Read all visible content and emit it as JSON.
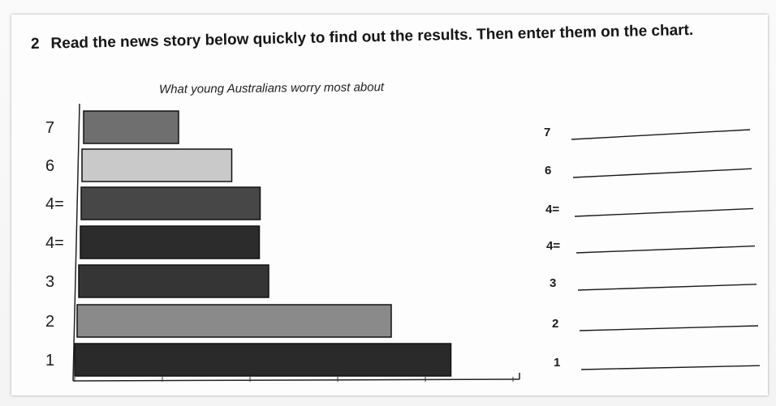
{
  "instruction": {
    "number": "2",
    "text": "Read the news story below quickly to find out the results. Then enter them on the chart."
  },
  "chart_data": {
    "type": "bar",
    "orientation": "horizontal",
    "title": "What young Australians worry most about",
    "categories": [
      "7",
      "6",
      "4=",
      "4=",
      "3",
      "2",
      "1"
    ],
    "values": [
      26,
      41,
      49,
      49,
      52,
      86,
      103
    ],
    "bar_colors": [
      "#6f6f6f",
      "#c9c9c9",
      "#474747",
      "#2c2c2c",
      "#353535",
      "#8a8a8a",
      "#2a2a2a"
    ],
    "xlim": [
      0,
      120
    ],
    "xlabel": "",
    "ylabel": "",
    "grid": false,
    "legend": "none"
  },
  "answers": {
    "labels": [
      "7",
      "6",
      "4=",
      "4=",
      "3",
      "2",
      "1"
    ]
  }
}
